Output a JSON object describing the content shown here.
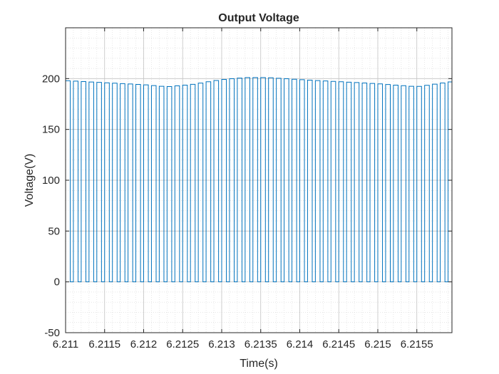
{
  "chart_data": {
    "type": "line",
    "title": "Output Voltage",
    "xlabel": "Time(s)",
    "ylabel": "Voltage(V)",
    "xlim": [
      6.211,
      6.21595
    ],
    "ylim": [
      -50,
      250
    ],
    "x_ticks": [
      6.211,
      6.2115,
      6.212,
      6.2125,
      6.213,
      6.2135,
      6.214,
      6.2145,
      6.215,
      6.2155
    ],
    "x_tick_labels": [
      "6.211",
      "6.2115",
      "6.212",
      "6.2125",
      "6.213",
      "6.2135",
      "6.214",
      "6.2145",
      "6.215",
      "6.2155"
    ],
    "y_ticks": [
      -50,
      0,
      50,
      100,
      150,
      200
    ],
    "y_tick_labels": [
      "-50",
      "0",
      "50",
      "100",
      "150",
      "200"
    ],
    "grid": true,
    "minor_grid": true,
    "series": [
      {
        "color": "#0072BD",
        "waveform": "pulse-train",
        "pulse_period_s": 0.0001,
        "duty_cycle": 0.6,
        "low_value": 0,
        "high_envelope": [
          {
            "x": 6.211,
            "y": 198
          },
          {
            "x": 6.2115,
            "y": 196
          },
          {
            "x": 6.212,
            "y": 194
          },
          {
            "x": 6.2123,
            "y": 192
          },
          {
            "x": 6.2126,
            "y": 194
          },
          {
            "x": 6.213,
            "y": 199
          },
          {
            "x": 6.2133,
            "y": 201
          },
          {
            "x": 6.2136,
            "y": 201
          },
          {
            "x": 6.214,
            "y": 199
          },
          {
            "x": 6.2145,
            "y": 197
          },
          {
            "x": 6.215,
            "y": 195
          },
          {
            "x": 6.2155,
            "y": 192
          },
          {
            "x": 6.21595,
            "y": 197
          }
        ]
      }
    ]
  }
}
